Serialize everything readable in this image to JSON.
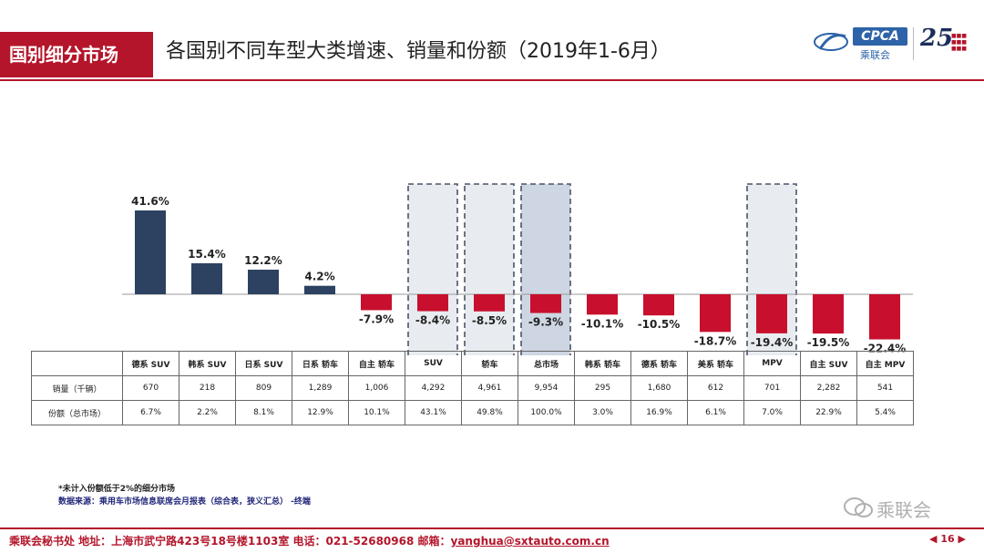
{
  "header": {
    "tag": "国别细分市场",
    "title": "各国别不同车型大类增速、销量和份额（2019年1-6月）",
    "logo_text": "CPCA",
    "logo_cn": "乘联会",
    "anniv_number": "25"
  },
  "colors": {
    "positive": "#2c4260",
    "negative": "#c8102e",
    "accent": "#b4152b",
    "highlight": "#e8ecf1",
    "highlight_strong": "#cdd6e2"
  },
  "chart_data": {
    "type": "bar",
    "title": "",
    "categories": [
      "德系 SUV",
      "韩系 SUV",
      "日系 SUV",
      "日系 轿车",
      "自主 轿车",
      "SUV",
      "轿车",
      "总市场",
      "韩系 轿车",
      "德系 轿车",
      "美系 轿车",
      "MPV",
      "自主 SUV",
      "自主 MPV"
    ],
    "values": [
      41.6,
      15.4,
      12.2,
      4.2,
      -7.9,
      -8.4,
      -8.5,
      -9.3,
      -10.1,
      -10.5,
      -18.7,
      -19.4,
      -19.5,
      -22.4
    ],
    "value_labels": [
      "41.6%",
      "15.4%",
      "12.2%",
      "4.2%",
      "-7.9%",
      "-8.4%",
      "-8.5%",
      "-9.3%",
      "-10.1%",
      "-10.5%",
      "-18.7%",
      "-19.4%",
      "-19.5%",
      "-22.4%"
    ],
    "ylim": [
      -25,
      45
    ],
    "highlighted": [
      "SUV",
      "轿车",
      "总市场",
      "MPV"
    ],
    "emphasized": "总市场",
    "grid": false,
    "legend": "none"
  },
  "table": {
    "row_labels": [
      "销量（千辆）",
      "份额（总市场）"
    ],
    "rows": [
      [
        "670",
        "218",
        "809",
        "1,289",
        "1,006",
        "4,292",
        "4,961",
        "9,954",
        "295",
        "1,680",
        "612",
        "701",
        "2,282",
        "541"
      ],
      [
        "6.7%",
        "2.2%",
        "8.1%",
        "12.9%",
        "10.1%",
        "43.1%",
        "49.8%",
        "100.0%",
        "3.0%",
        "16.9%",
        "6.1%",
        "7.0%",
        "22.9%",
        "5.4%"
      ]
    ]
  },
  "notes": {
    "footnote": "*未计入份额低于2%的细分市场",
    "source": "数据来源：乘用车市场信息联席会月报表（综合表，狭义汇总）  -终端"
  },
  "wechat": {
    "text": "乘联会"
  },
  "footer": {
    "address": "乘联会秘书处   地址：上海市武宁路423号18号楼1103室  电话：021-52680968   邮箱：",
    "email": "yanghua@sxtauto.com.cn",
    "page": "16"
  }
}
